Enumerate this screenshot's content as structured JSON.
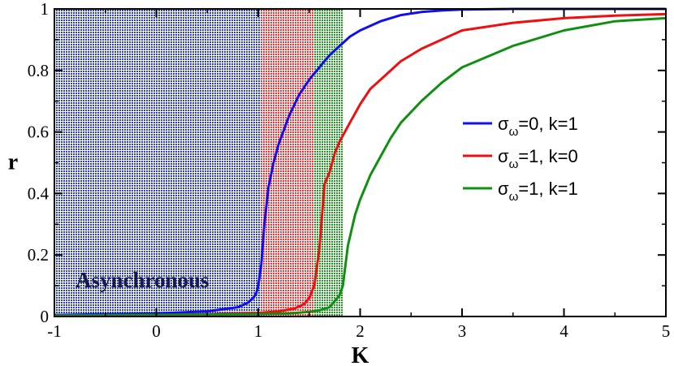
{
  "chart_data": {
    "type": "line",
    "title": "",
    "xlabel": "K",
    "ylabel": "r",
    "xlim": [
      -1,
      5
    ],
    "ylim": [
      0,
      1
    ],
    "x_ticks": [
      "-1",
      "0",
      "1",
      "2",
      "3",
      "4",
      "5"
    ],
    "y_ticks": [
      "0",
      "0.2",
      "0.4",
      "0.6",
      "0.8",
      "1"
    ],
    "regions": [
      {
        "x_from": -1,
        "x_to": 1.03,
        "color": "#2a3dc8",
        "label": "Asynchronous"
      },
      {
        "x_from": 1.03,
        "x_to": 1.55,
        "color": "#ff3030",
        "label": ""
      },
      {
        "x_from": 1.55,
        "x_to": 1.83,
        "color": "#1e9a1e",
        "label": ""
      }
    ],
    "legend_position": "right",
    "series": [
      {
        "name": "σω=0, k=1",
        "legend": {
          "sym": "σ",
          "sub": "ω",
          "rest": "=0, k=1"
        },
        "color": "#1010ee",
        "x": [
          -1,
          0,
          0.5,
          0.8,
          0.9,
          0.95,
          0.98,
          1.0,
          1.03,
          1.06,
          1.1,
          1.15,
          1.2,
          1.3,
          1.4,
          1.5,
          1.6,
          1.7,
          1.8,
          1.9,
          2.0,
          2.2,
          2.4,
          2.6,
          2.8,
          3.0,
          3.5,
          4.0,
          5.0
        ],
        "y": [
          0.005,
          0.01,
          0.017,
          0.03,
          0.045,
          0.06,
          0.075,
          0.1,
          0.17,
          0.3,
          0.42,
          0.5,
          0.56,
          0.65,
          0.72,
          0.77,
          0.81,
          0.85,
          0.88,
          0.91,
          0.93,
          0.96,
          0.98,
          0.99,
          0.995,
          0.998,
          1.0,
          1.0,
          1.0
        ]
      },
      {
        "name": "σω=1, k=0",
        "legend": {
          "sym": "σ",
          "sub": "ω",
          "rest": "=1, k=0"
        },
        "color": "#ee1010",
        "x": [
          -1,
          0,
          0.5,
          1.0,
          1.2,
          1.35,
          1.45,
          1.5,
          1.55,
          1.6,
          1.65,
          1.7,
          1.75,
          1.8,
          1.9,
          2.0,
          2.1,
          2.2,
          2.4,
          2.6,
          2.8,
          3.0,
          3.5,
          4.0,
          4.5,
          5.0
        ],
        "y": [
          0.003,
          0.005,
          0.007,
          0.012,
          0.017,
          0.025,
          0.04,
          0.06,
          0.1,
          0.22,
          0.43,
          0.47,
          0.53,
          0.57,
          0.63,
          0.69,
          0.74,
          0.77,
          0.83,
          0.87,
          0.9,
          0.93,
          0.955,
          0.97,
          0.978,
          0.983
        ]
      },
      {
        "name": "σω=1, k=1",
        "legend": {
          "sym": "σ",
          "sub": "ω",
          "rest": "=1, k=1"
        },
        "color": "#109010",
        "x": [
          -1,
          0,
          0.5,
          1.0,
          1.3,
          1.5,
          1.6,
          1.7,
          1.75,
          1.8,
          1.83,
          1.88,
          1.95,
          2.0,
          2.1,
          2.2,
          2.3,
          2.4,
          2.6,
          2.8,
          3.0,
          3.5,
          4.0,
          4.5,
          5.0
        ],
        "y": [
          0.003,
          0.005,
          0.006,
          0.008,
          0.01,
          0.015,
          0.02,
          0.03,
          0.05,
          0.07,
          0.1,
          0.23,
          0.33,
          0.38,
          0.46,
          0.52,
          0.58,
          0.63,
          0.7,
          0.76,
          0.81,
          0.88,
          0.93,
          0.96,
          0.97
        ]
      }
    ]
  }
}
